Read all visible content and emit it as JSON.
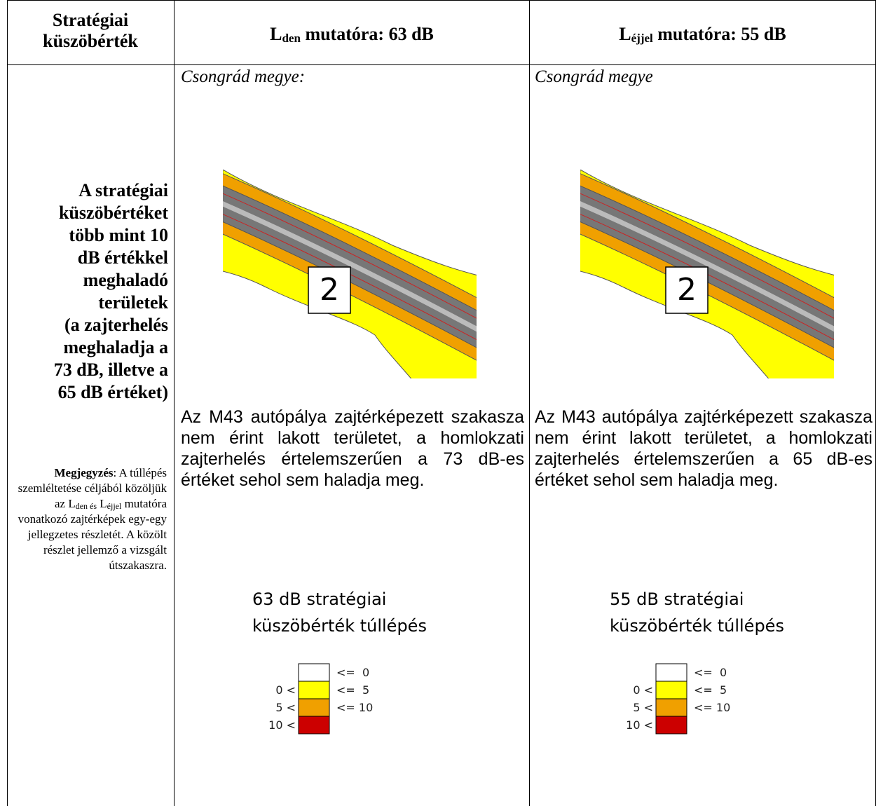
{
  "header": {
    "col1": "Stratégiai küszöbérték",
    "col2": {
      "main": "L",
      "sub": "den",
      "rest": "mutatóra: 63 dB"
    },
    "col3": {
      "main": "L",
      "sub": "éjjel",
      "rest": "mutatóra: 55 dB"
    }
  },
  "body": {
    "col1": {
      "lines": [
        "A stratégiai",
        "küszöbértéket",
        "több mint 10",
        "dB értékkel",
        "meghaladó",
        "területek",
        "(a zajterhelés",
        "meghaladja a",
        "73 dB, illetve a",
        "65 dB értéket)"
      ],
      "note": {
        "label": "Megjegyzés",
        "text": ": A túllépés szemléltetése céljából közöljük az",
        "l1": "L",
        "sub1": "den és",
        "l2": "L",
        "sub2": "éjjel",
        "tail": "mutatóra vonatkozó zajtérképek egy-egy jellegzetes részletét. A közölt részlet jellemző a vizsgált útszakaszra."
      }
    },
    "panels": [
      {
        "region": "Csongrád megye:",
        "map_label": "2",
        "paragraph": "Az M43 autópálya zajtérképezett szakasza nem érint lakott területet, a homlokzati zajterhelés értelemszerűen a 73 dB-es értéket sehol sem haladja meg.",
        "legend": {
          "title": [
            "63 dB stratégiai",
            "küszöbérték túllépés"
          ],
          "rows": [
            {
              "color": "#ffffff",
              "right": "<=  0"
            },
            {
              "color": "#ffff00",
              "left": "0 <",
              "right": "<=  5"
            },
            {
              "color": "#f0a000",
              "left": "5 <",
              "right": "<= 10"
            },
            {
              "color": "#cc0000",
              "left": "10 <"
            }
          ]
        }
      },
      {
        "region": "Csongrád megye",
        "map_label": "2",
        "paragraph": "Az M43 autópálya zajtérképezett szakasza nem érint lakott területet, a homlokzati zajterhelés értelemszerűen a 65 dB-es értéket sehol sem haladja meg.",
        "legend": {
          "title": [
            "55 dB stratégiai",
            "küszöbérték túllépés"
          ],
          "rows": [
            {
              "color": "#ffffff",
              "right": "<=  0"
            },
            {
              "color": "#ffff00",
              "left": "0 <",
              "right": "<=  5"
            },
            {
              "color": "#f0a000",
              "left": "5 <",
              "right": "<= 10"
            },
            {
              "color": "#cc0000",
              "left": "10 <"
            }
          ]
        }
      }
    ]
  }
}
